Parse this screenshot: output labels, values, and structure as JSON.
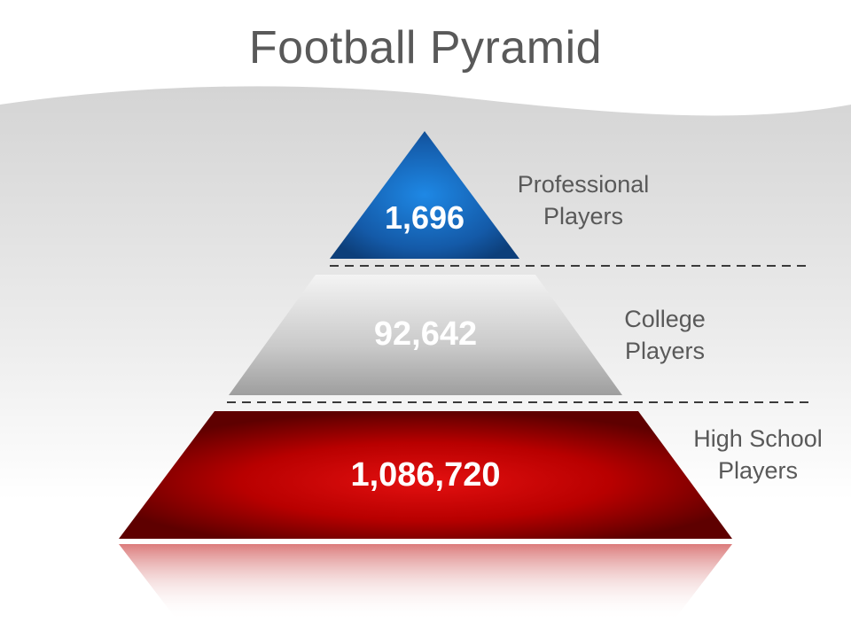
{
  "title": "Football Pyramid",
  "tiers": [
    {
      "value": "1,696",
      "label_line1": "Professional",
      "label_line2": "Players",
      "color": "#1565b0"
    },
    {
      "value": "92,642",
      "label_line1": "College",
      "label_line2": "Players",
      "color": "#bdbdbd"
    },
    {
      "value": "1,086,720",
      "label_line1": "High School",
      "label_line2": "Players",
      "color": "#c00000"
    }
  ]
}
